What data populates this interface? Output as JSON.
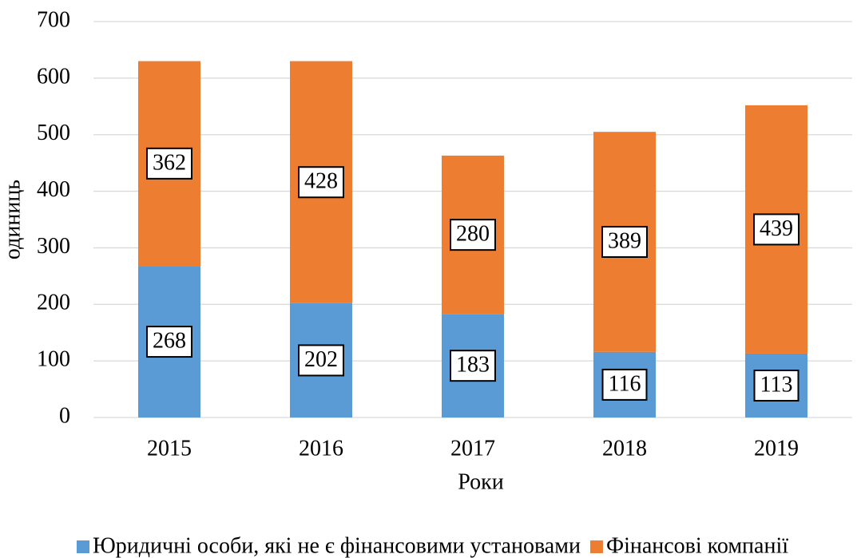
{
  "chart_data": {
    "type": "stacked_bar",
    "categories": [
      "2015",
      "2016",
      "2017",
      "2018",
      "2019"
    ],
    "series": [
      {
        "name": "Юридичні особи, які не є фінансовими установами",
        "color": "#5b9bd5",
        "values": [
          268,
          202,
          183,
          116,
          113
        ]
      },
      {
        "name": "Фінансові компанії",
        "color": "#ed7d31",
        "values": [
          362,
          428,
          280,
          389,
          439
        ]
      }
    ],
    "ylim": [
      0,
      700
    ],
    "yticks": [
      0,
      100,
      200,
      300,
      400,
      500,
      600,
      700
    ],
    "y_label": "одиниць",
    "x_label": "Роки",
    "grid": true,
    "legend": "bottom"
  }
}
